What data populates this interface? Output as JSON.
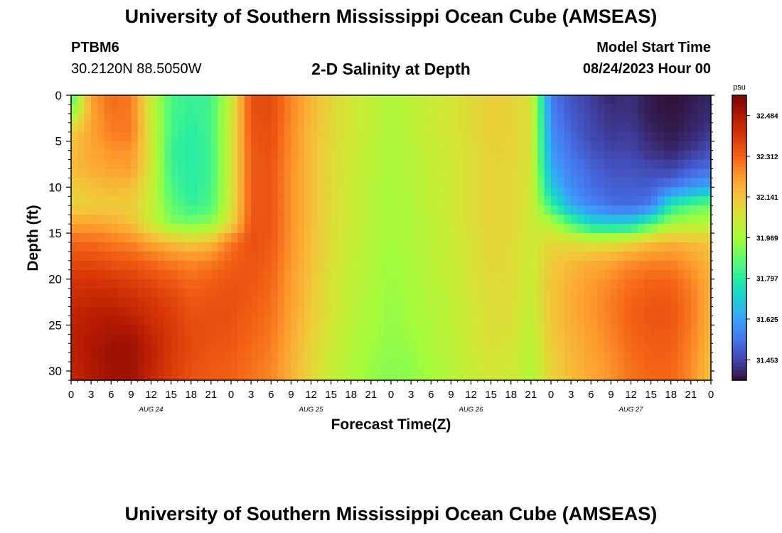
{
  "header": {
    "title": "University of Southern Mississippi Ocean Cube (AMSEAS)",
    "station_id": "PTBM6",
    "station_coords": "30.2120N  88.5050W",
    "plot_title": "2-D Salinity at Depth",
    "model_label": "Model Start Time",
    "model_time": "08/24/2023 Hour 00"
  },
  "footer": {
    "title": "University of Southern Mississippi Ocean Cube (AMSEAS)"
  },
  "chart_data": {
    "type": "heatmap",
    "title": "2-D Salinity at Depth",
    "xlabel": "Forecast Time(Z)",
    "ylabel": "Depth (ft)",
    "x_unit": "hours since 08/24/2023 00Z",
    "xlim": [
      0,
      96
    ],
    "ylim": [
      0,
      31
    ],
    "y_inverted": true,
    "x_ticks": [
      0,
      3,
      6,
      9,
      12,
      15,
      18,
      21,
      24,
      27,
      30,
      33,
      36,
      39,
      42,
      45,
      48,
      51,
      54,
      57,
      60,
      63,
      66,
      69,
      72,
      75,
      78,
      81,
      84,
      87,
      90,
      93,
      96
    ],
    "x_tick_labels": [
      "0",
      "3",
      "6",
      "9",
      "12",
      "15",
      "18",
      "21",
      "0",
      "3",
      "6",
      "9",
      "12",
      "15",
      "18",
      "21",
      "0",
      "3",
      "6",
      "9",
      "12",
      "15",
      "18",
      "21",
      "0",
      "3",
      "6",
      "9",
      "12",
      "15",
      "18",
      "21",
      "0"
    ],
    "day_labels": [
      {
        "x": 12,
        "label": "AUG 24"
      },
      {
        "x": 36,
        "label": "AUG 25"
      },
      {
        "x": 60,
        "label": "AUG 26"
      },
      {
        "x": 84,
        "label": "AUG 27"
      }
    ],
    "y_ticks": [
      0,
      5,
      10,
      15,
      20,
      25,
      30
    ],
    "y_tick_labels": [
      "0",
      "5",
      "10",
      "15",
      "20",
      "25",
      "30"
    ],
    "colorbar": {
      "unit": "psu",
      "min": 31.367,
      "max": 32.57,
      "tick_labels": [
        "32.484",
        "32.312",
        "32.141",
        "31.969",
        "31.797",
        "31.625",
        "31.453"
      ],
      "colors": [
        "#30123b",
        "#4145ab",
        "#4675ed",
        "#39a2fc",
        "#1bcfd4",
        "#24eca6",
        "#61fc6c",
        "#a4fc3b",
        "#d1e834",
        "#f3c63a",
        "#fe9b2d",
        "#f36315",
        "#d93806",
        "#b11901",
        "#7a0403"
      ]
    },
    "depths_ft": [
      0,
      2,
      4,
      6,
      8,
      10,
      12,
      14,
      16,
      18,
      20,
      22,
      24,
      26,
      28,
      30
    ],
    "hours": [
      0,
      3,
      6,
      9,
      12,
      15,
      18,
      21,
      24,
      27,
      30,
      33,
      36,
      39,
      42,
      45,
      48,
      51,
      54,
      57,
      60,
      63,
      66,
      69,
      72,
      75,
      78,
      81,
      84,
      87,
      90,
      93,
      96
    ],
    "salinity_psu": [
      [
        31.82,
        32.22,
        32.3,
        32.28,
        32.03,
        31.85,
        31.82,
        31.83,
        32.03,
        32.35,
        32.36,
        32.26,
        32.17,
        32.1,
        32.05,
        32.02,
        31.99,
        32.01,
        32.04,
        32.06,
        32.09,
        32.12,
        32.11,
        32.07,
        31.55,
        31.48,
        31.44,
        31.4,
        31.42,
        31.38,
        31.36,
        31.38,
        31.4
      ],
      [
        31.94,
        32.2,
        32.29,
        32.28,
        32.04,
        31.84,
        31.82,
        31.84,
        32.04,
        32.35,
        32.36,
        32.26,
        32.17,
        32.1,
        32.05,
        32.02,
        31.99,
        32.01,
        32.04,
        32.06,
        32.09,
        32.12,
        32.11,
        32.07,
        31.57,
        31.49,
        31.45,
        31.42,
        31.42,
        31.38,
        31.37,
        31.39,
        31.41
      ],
      [
        32.12,
        32.21,
        32.27,
        32.28,
        32.06,
        31.84,
        31.8,
        31.84,
        32.05,
        32.34,
        32.35,
        32.25,
        32.16,
        32.1,
        32.05,
        32.02,
        31.99,
        32.01,
        32.04,
        32.06,
        32.09,
        32.12,
        32.11,
        32.07,
        31.59,
        31.51,
        31.46,
        31.43,
        31.44,
        31.4,
        31.38,
        31.4,
        31.43
      ],
      [
        32.15,
        32.2,
        32.24,
        32.24,
        32.06,
        31.82,
        31.8,
        31.83,
        32.05,
        32.33,
        32.35,
        32.25,
        32.16,
        32.09,
        32.05,
        32.01,
        31.98,
        32.0,
        32.03,
        32.05,
        32.08,
        32.11,
        32.11,
        32.07,
        31.61,
        31.53,
        31.48,
        31.45,
        31.45,
        31.42,
        31.4,
        31.43,
        31.47
      ],
      [
        32.16,
        32.19,
        32.21,
        32.22,
        32.06,
        31.83,
        31.8,
        31.83,
        32.05,
        32.33,
        32.34,
        32.24,
        32.16,
        32.09,
        32.05,
        32.01,
        31.98,
        32.0,
        32.03,
        32.05,
        32.08,
        32.11,
        32.1,
        32.06,
        31.64,
        31.56,
        31.51,
        31.48,
        31.48,
        31.46,
        31.45,
        31.5,
        31.53
      ],
      [
        32.12,
        32.15,
        32.17,
        32.16,
        32.04,
        31.85,
        31.8,
        31.84,
        32.05,
        32.33,
        32.34,
        32.24,
        32.16,
        32.09,
        32.04,
        32.0,
        31.98,
        32.0,
        32.02,
        32.05,
        32.08,
        32.11,
        32.1,
        32.06,
        31.7,
        31.58,
        31.53,
        31.5,
        31.5,
        31.5,
        31.55,
        31.6,
        31.64
      ],
      [
        32.1,
        32.12,
        32.13,
        32.12,
        32.03,
        31.88,
        31.82,
        31.85,
        32.06,
        32.33,
        32.34,
        32.24,
        32.16,
        32.09,
        32.04,
        32.0,
        31.97,
        31.99,
        32.02,
        32.05,
        32.08,
        32.11,
        32.1,
        32.05,
        31.82,
        31.64,
        31.57,
        31.53,
        31.52,
        31.55,
        31.78,
        31.86,
        31.9
      ],
      [
        32.21,
        32.21,
        32.19,
        32.16,
        32.04,
        31.93,
        31.91,
        31.94,
        32.1,
        32.34,
        32.34,
        32.24,
        32.16,
        32.09,
        32.04,
        32.0,
        31.97,
        31.99,
        32.01,
        32.04,
        32.08,
        32.11,
        32.1,
        32.05,
        32.0,
        31.86,
        31.74,
        31.72,
        31.73,
        31.85,
        31.97,
        31.99,
        32.0
      ],
      [
        32.31,
        32.3,
        32.28,
        32.26,
        32.2,
        32.16,
        32.13,
        32.16,
        32.28,
        32.35,
        32.33,
        32.24,
        32.15,
        32.08,
        32.03,
        32.0,
        31.97,
        31.99,
        32.01,
        32.04,
        32.07,
        32.1,
        32.09,
        32.04,
        32.1,
        32.08,
        32.06,
        32.07,
        32.1,
        32.15,
        32.18,
        32.16,
        32.14
      ],
      [
        32.36,
        32.36,
        32.34,
        32.33,
        32.3,
        32.27,
        32.25,
        32.27,
        32.32,
        32.34,
        32.32,
        32.23,
        32.15,
        32.08,
        32.03,
        31.99,
        31.96,
        31.98,
        32.01,
        32.03,
        32.07,
        32.1,
        32.09,
        32.04,
        32.12,
        32.16,
        32.18,
        32.2,
        32.24,
        32.26,
        32.26,
        32.22,
        32.16
      ],
      [
        32.4,
        32.41,
        32.4,
        32.38,
        32.36,
        32.33,
        32.3,
        32.32,
        32.34,
        32.34,
        32.31,
        32.22,
        32.14,
        32.07,
        32.02,
        31.99,
        31.96,
        31.98,
        32.0,
        32.03,
        32.06,
        32.09,
        32.09,
        32.03,
        32.14,
        32.18,
        32.22,
        32.25,
        32.29,
        32.31,
        32.31,
        32.26,
        32.18
      ],
      [
        32.43,
        32.44,
        32.44,
        32.42,
        32.4,
        32.37,
        32.33,
        32.34,
        32.35,
        32.33,
        32.3,
        32.22,
        32.14,
        32.07,
        32.02,
        31.98,
        31.95,
        31.97,
        32.0,
        32.02,
        32.06,
        32.09,
        32.08,
        32.03,
        32.14,
        32.19,
        32.23,
        32.27,
        32.31,
        32.33,
        32.33,
        32.28,
        32.18
      ],
      [
        32.45,
        32.47,
        32.48,
        32.46,
        32.42,
        32.39,
        32.35,
        32.35,
        32.35,
        32.32,
        32.29,
        32.21,
        32.13,
        32.06,
        32.01,
        31.98,
        31.95,
        31.97,
        31.99,
        32.02,
        32.05,
        32.08,
        32.08,
        32.02,
        32.14,
        32.19,
        32.23,
        32.27,
        32.32,
        32.34,
        32.34,
        32.28,
        32.18
      ],
      [
        32.46,
        32.48,
        32.5,
        32.5,
        32.45,
        32.4,
        32.36,
        32.35,
        32.34,
        32.31,
        32.28,
        32.2,
        32.12,
        32.05,
        32.0,
        31.97,
        31.94,
        31.96,
        31.99,
        32.01,
        32.05,
        32.08,
        32.07,
        32.01,
        32.13,
        32.18,
        32.22,
        32.26,
        32.31,
        32.33,
        32.33,
        32.27,
        32.17
      ],
      [
        32.46,
        32.49,
        32.52,
        32.52,
        32.46,
        32.4,
        32.36,
        32.34,
        32.33,
        32.3,
        32.27,
        32.19,
        32.11,
        32.04,
        32.0,
        31.96,
        31.94,
        31.95,
        31.98,
        32.01,
        32.04,
        32.07,
        32.06,
        32.0,
        32.12,
        32.17,
        32.21,
        32.25,
        32.3,
        32.32,
        32.32,
        32.26,
        32.16
      ],
      [
        32.45,
        32.48,
        32.51,
        32.51,
        32.45,
        32.39,
        32.35,
        32.33,
        32.32,
        32.29,
        32.26,
        32.18,
        32.1,
        32.03,
        31.99,
        31.95,
        31.93,
        31.94,
        31.97,
        32.0,
        32.03,
        32.06,
        32.05,
        31.99,
        32.11,
        32.16,
        32.2,
        32.24,
        32.29,
        32.31,
        32.31,
        32.25,
        32.15
      ]
    ]
  }
}
